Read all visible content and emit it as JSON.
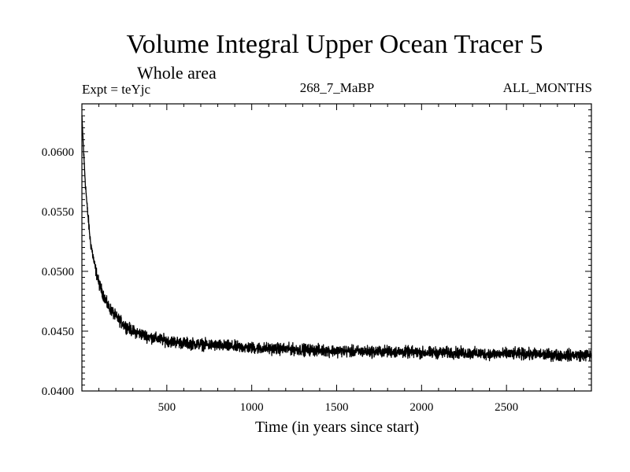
{
  "header": {
    "title": "Volume Integral Upper Ocean Tracer 5",
    "subtitle": "Whole area",
    "experiment": "Expt = teYjc",
    "run_id": "268_7_MaBP",
    "months": "ALL_MONTHS"
  },
  "chart_data": {
    "type": "line",
    "title": "Volume Integral Upper Ocean Tracer 5",
    "xlabel": "Time (in years since start)",
    "ylabel": "",
    "xlim": [
      0,
      3000
    ],
    "ylim": [
      0.04,
      0.064
    ],
    "x_ticks": [
      500,
      1000,
      1500,
      2000,
      2500
    ],
    "x_tick_labels": [
      "500",
      "1000",
      "1500",
      "2000",
      "2500"
    ],
    "y_ticks": [
      0.04,
      0.045,
      0.05,
      0.055,
      0.06
    ],
    "y_tick_labels": [
      "0.0400",
      "0.0450",
      "0.0500",
      "0.0550",
      "0.0600"
    ],
    "grid": false,
    "series": [
      {
        "name": "Tracer 5",
        "color": "#000000",
        "x": [
          0,
          10,
          20,
          30,
          40,
          50,
          75,
          100,
          150,
          200,
          250,
          300,
          400,
          500,
          600,
          700,
          800,
          900,
          1000,
          1200,
          1400,
          1600,
          1800,
          2000,
          2200,
          2400,
          2600,
          2800,
          3000
        ],
        "y": [
          0.063,
          0.06,
          0.0575,
          0.0555,
          0.054,
          0.0525,
          0.0505,
          0.049,
          0.0472,
          0.0462,
          0.0455,
          0.045,
          0.0445,
          0.0442,
          0.044,
          0.0439,
          0.0438,
          0.0437,
          0.0436,
          0.0435,
          0.0434,
          0.0433,
          0.0433,
          0.0432,
          0.0432,
          0.0431,
          0.0431,
          0.043,
          0.043
        ],
        "noise_amplitude": 0.0007
      }
    ]
  }
}
